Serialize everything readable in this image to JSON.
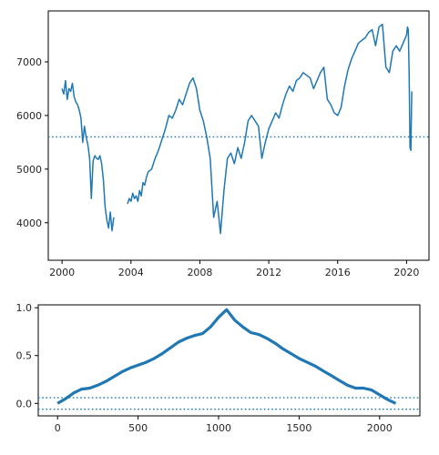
{
  "chart_data": [
    {
      "type": "line",
      "title": "",
      "xlabel": "",
      "ylabel": "",
      "x_kind": "year",
      "xlim": [
        1999.2,
        2021.3
      ],
      "ylim": [
        3300,
        7950
      ],
      "xticks": [
        2000,
        2004,
        2008,
        2012,
        2016,
        2020
      ],
      "xtick_labels": [
        "2000",
        "2004",
        "2008",
        "2012",
        "2016",
        "2020"
      ],
      "yticks": [
        4000,
        5000,
        6000,
        7000
      ],
      "ytick_labels": [
        "4000",
        "5000",
        "6000",
        "7000"
      ],
      "grid": false,
      "legend": "none",
      "color": "#1f77b4",
      "hline": {
        "y": 5600,
        "style": "dotted"
      },
      "series": [
        {
          "segments": [
            {
              "x": [
                2000.0,
                2000.1,
                2000.2,
                2000.3,
                2000.4,
                2000.5,
                2000.6,
                2000.7,
                2000.8,
                2000.9,
                2001.0,
                2001.1,
                2001.2,
                2001.3,
                2001.4,
                2001.5,
                2001.6,
                2001.7,
                2001.8,
                2001.9,
                2002.0,
                2002.1,
                2002.2,
                2002.3,
                2002.4,
                2002.5,
                2002.6,
                2002.7,
                2002.8,
                2002.9,
                2003.0
              ],
              "y": [
                6500,
                6400,
                6650,
                6300,
                6500,
                6450,
                6600,
                6350,
                6250,
                6200,
                6100,
                5950,
                5500,
                5800,
                5600,
                5450,
                5200,
                4450,
                5150,
                5250,
                5200,
                5180,
                5250,
                5100,
                4800,
                4300,
                4050,
                3900,
                4200,
                3850,
                4100
              ]
            },
            {
              "x": [
                2003.8,
                2003.9,
                2004.0,
                2004.1,
                2004.2,
                2004.3,
                2004.4,
                2004.5,
                2004.6,
                2004.7,
                2004.8,
                2004.9,
                2005.0,
                2005.2,
                2005.4,
                2005.6,
                2005.8,
                2006.0,
                2006.2,
                2006.4,
                2006.6,
                2006.8,
                2007.0,
                2007.2,
                2007.4,
                2007.6,
                2007.8,
                2008.0,
                2008.2,
                2008.4,
                2008.6,
                2008.8,
                2009.0,
                2009.2,
                2009.4,
                2009.6,
                2009.8,
                2010.0,
                2010.2,
                2010.4,
                2010.6,
                2010.8,
                2011.0,
                2011.2,
                2011.4,
                2011.6,
                2011.8,
                2012.0,
                2012.2,
                2012.4,
                2012.6,
                2012.8,
                2013.0,
                2013.2,
                2013.4,
                2013.6,
                2013.8,
                2014.0,
                2014.2,
                2014.4,
                2014.6,
                2014.8,
                2015.0,
                2015.2,
                2015.4,
                2015.6,
                2015.8,
                2016.0,
                2016.2,
                2016.4,
                2016.6,
                2016.8,
                2017.0,
                2017.2,
                2017.4,
                2017.6,
                2017.8,
                2018.0,
                2018.2,
                2018.4,
                2018.6,
                2018.8,
                2019.0,
                2019.2,
                2019.4,
                2019.6,
                2019.8,
                2020.0,
                2020.05,
                2020.1,
                2020.15,
                2020.2,
                2020.25,
                2020.3
              ],
              "y": [
                4350,
                4450,
                4400,
                4550,
                4450,
                4500,
                4400,
                4600,
                4500,
                4750,
                4700,
                4850,
                4950,
                5000,
                5200,
                5350,
                5550,
                5750,
                6000,
                5950,
                6100,
                6300,
                6200,
                6400,
                6600,
                6700,
                6500,
                6100,
                5900,
                5600,
                5200,
                4100,
                4400,
                3800,
                4600,
                5200,
                5300,
                5100,
                5400,
                5200,
                5500,
                5900,
                6000,
                5900,
                5800,
                5200,
                5500,
                5750,
                5900,
                6050,
                5950,
                6200,
                6400,
                6550,
                6450,
                6650,
                6700,
                6800,
                6750,
                6700,
                6500,
                6650,
                6800,
                6900,
                6300,
                6200,
                6050,
                6000,
                6150,
                6550,
                6850,
                7050,
                7200,
                7350,
                7400,
                7450,
                7550,
                7600,
                7300,
                7650,
                7700,
                6900,
                6800,
                7200,
                7300,
                7200,
                7350,
                7500,
                7650,
                7600,
                6800,
                5400,
                5350,
                6450
              ]
            }
          ]
        }
      ]
    },
    {
      "type": "line",
      "title": "",
      "xlabel": "",
      "ylabel": "",
      "xlim": [
        -120,
        2250
      ],
      "ylim": [
        -0.13,
        1.03
      ],
      "xticks": [
        0,
        500,
        1000,
        1500,
        2000
      ],
      "xtick_labels": [
        "0",
        "500",
        "1000",
        "1500",
        "2000"
      ],
      "yticks": [
        0.0,
        0.5,
        1.0
      ],
      "ytick_labels": [
        "0.0",
        "0.5",
        "1.0"
      ],
      "grid": false,
      "legend": "none",
      "color": "#1f77b4",
      "hlines": [
        {
          "y": 0.06,
          "style": "dotted"
        },
        {
          "y": -0.06,
          "style": "dotted"
        }
      ],
      "series": [
        {
          "x": [
            0,
            50,
            100,
            150,
            200,
            250,
            300,
            350,
            400,
            450,
            500,
            550,
            600,
            650,
            700,
            750,
            800,
            850,
            900,
            950,
            1000,
            1050,
            1100,
            1150,
            1200,
            1250,
            1300,
            1350,
            1400,
            1450,
            1500,
            1550,
            1600,
            1650,
            1700,
            1750,
            1800,
            1850,
            1900,
            1950,
            2000,
            2050,
            2100
          ],
          "y": [
            0.0,
            0.05,
            0.11,
            0.15,
            0.16,
            0.19,
            0.23,
            0.28,
            0.33,
            0.37,
            0.4,
            0.43,
            0.47,
            0.52,
            0.58,
            0.64,
            0.68,
            0.71,
            0.73,
            0.8,
            0.9,
            0.98,
            0.87,
            0.8,
            0.74,
            0.72,
            0.68,
            0.63,
            0.57,
            0.52,
            0.47,
            0.43,
            0.39,
            0.34,
            0.29,
            0.24,
            0.19,
            0.16,
            0.16,
            0.14,
            0.09,
            0.04,
            0.0
          ]
        }
      ]
    }
  ]
}
